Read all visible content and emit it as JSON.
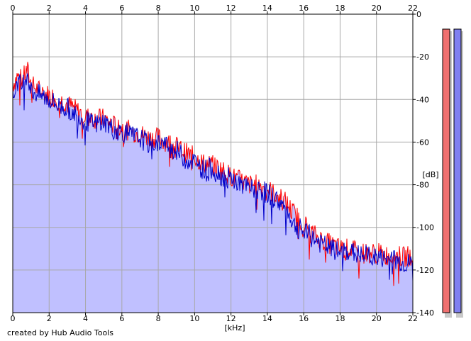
{
  "credit": "created by Hub Audio Tools",
  "colors": {
    "background": "#ffffff",
    "grid": "#a8a8a8",
    "fill": "#c0c0ff",
    "channel_left": "#ff0000",
    "channel_right": "#0000c8",
    "meter_left": "#f07070",
    "meter_right": "#8080f0"
  },
  "meters": {
    "left_level_db": -7,
    "right_level_db": -7
  },
  "chart_data": {
    "type": "area",
    "title": "",
    "xlabel": "[kHz]",
    "ylabel": "[dB]",
    "xlim": [
      0,
      22
    ],
    "ylim": [
      -140,
      0
    ],
    "xticks": [
      "0",
      "2",
      "4",
      "6",
      "8",
      "10",
      "12",
      "14",
      "16",
      "18",
      "20",
      "22"
    ],
    "yticks": [
      "0",
      "-20",
      "-40",
      "-60",
      "-80",
      "-100",
      "-120",
      "-140"
    ],
    "grid": true,
    "series": [
      {
        "color": "#ff0000",
        "x": [
          0,
          0.25,
          0.5,
          0.8,
          1,
          1.5,
          2,
          2.5,
          3,
          3.5,
          4,
          4.5,
          5,
          5.5,
          6,
          6.5,
          7,
          7.5,
          8,
          8.5,
          9,
          9.5,
          10,
          10.5,
          11,
          11.5,
          12,
          12.5,
          13,
          13.5,
          14,
          14.5,
          15,
          15.5,
          16,
          16.5,
          17,
          17.5,
          18,
          18.5,
          19,
          19.5,
          20,
          20.5,
          21,
          21.5,
          22
        ],
        "y": [
          -33,
          -29,
          -31,
          -26,
          -33,
          -36,
          -38,
          -40,
          -42,
          -45,
          -48,
          -49,
          -49,
          -52,
          -53,
          -55,
          -56,
          -58,
          -58,
          -60,
          -62,
          -65,
          -67,
          -70,
          -71,
          -73,
          -76,
          -78,
          -80,
          -80,
          -82,
          -85,
          -88,
          -94,
          -98,
          -103,
          -106,
          -108,
          -110,
          -110,
          -112,
          -112,
          -112,
          -113,
          -113,
          -114,
          -113
        ]
      },
      {
        "color": "#0000c8",
        "x": [
          0,
          0.25,
          0.5,
          0.8,
          1,
          1.5,
          2,
          2.5,
          3,
          3.5,
          4,
          4.5,
          5,
          5.5,
          6,
          6.5,
          7,
          7.5,
          8,
          8.5,
          9,
          9.5,
          10,
          10.5,
          11,
          11.5,
          12,
          12.5,
          13,
          13.5,
          14,
          14.5,
          15,
          15.5,
          16,
          16.5,
          17,
          17.5,
          18,
          18.5,
          19,
          19.5,
          20,
          20.5,
          21,
          21.5,
          22
        ],
        "y": [
          -40,
          -31,
          -34,
          -27,
          -36,
          -38,
          -40,
          -43,
          -44,
          -47,
          -50,
          -52,
          -50,
          -54,
          -55,
          -57,
          -58,
          -61,
          -60,
          -62,
          -64,
          -68,
          -69,
          -73,
          -72,
          -76,
          -77,
          -80,
          -82,
          -82,
          -84,
          -87,
          -91,
          -99,
          -102,
          -105,
          -108,
          -110,
          -112,
          -111,
          -113,
          -113,
          -114,
          -115,
          -115,
          -117,
          -117
        ]
      }
    ]
  }
}
